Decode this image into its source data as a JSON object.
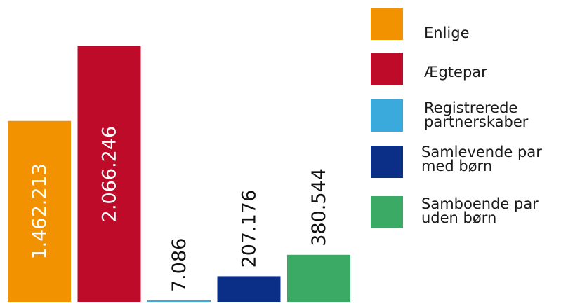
{
  "chart_data": {
    "type": "bar",
    "categories": [
      "Enlige",
      "Ægtepar",
      "Registrerede partnerskaber",
      "Samlevende par med børn",
      "Samboende par uden børn"
    ],
    "values": [
      1462213,
      2066246,
      7086,
      207176,
      380544
    ],
    "value_labels": [
      "1.462.213",
      "2.066.246",
      "7.086",
      "207.176",
      "380.544"
    ],
    "colors": [
      "#F39200",
      "#BE0B2A",
      "#3AAADC",
      "#0B2F86",
      "#3BAA64"
    ],
    "title": "",
    "xlabel": "",
    "ylabel": "",
    "grid": false,
    "legend_position": "right",
    "legend": [
      {
        "lines": [
          "Enlige"
        ],
        "color": "#F39200"
      },
      {
        "lines": [
          "Ægtepar"
        ],
        "color": "#BE0B2A"
      },
      {
        "lines": [
          "Registrerede",
          "partnerskaber"
        ],
        "color": "#3AAADC"
      },
      {
        "lines": [
          "Samlevende par",
          "med børn"
        ],
        "color": "#0B2F86"
      },
      {
        "lines": [
          "Samboende par",
          "uden børn"
        ],
        "color": "#3BAA64"
      }
    ]
  }
}
